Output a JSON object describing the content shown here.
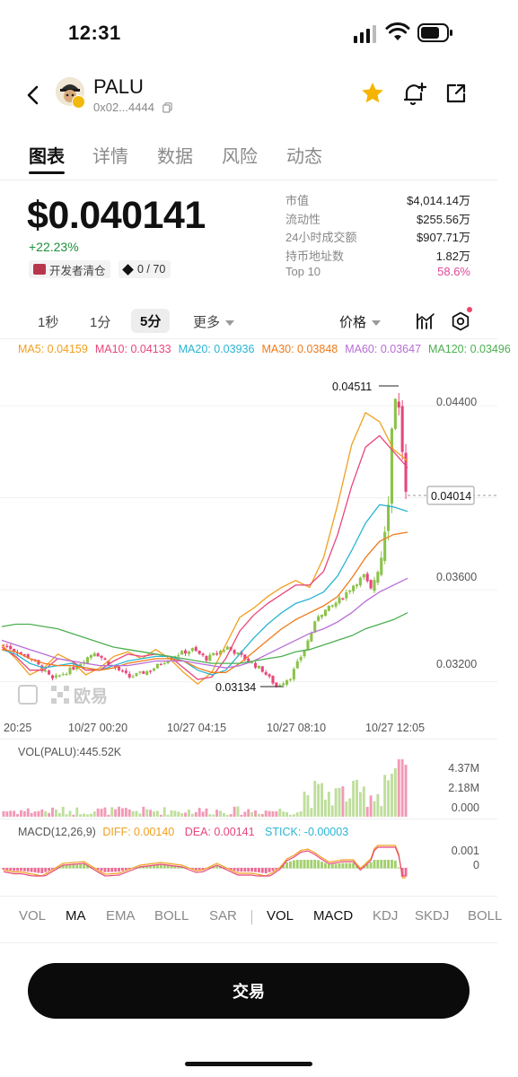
{
  "status_bar": {
    "time": "12:31"
  },
  "header": {
    "token_name": "PALU",
    "token_address": "0x02...4444"
  },
  "tabs": [
    {
      "label": "图表",
      "active": true
    },
    {
      "label": "详情",
      "active": false
    },
    {
      "label": "数据",
      "active": false
    },
    {
      "label": "风险",
      "active": false
    },
    {
      "label": "动态",
      "active": false
    }
  ],
  "price": {
    "value": "$0.040141",
    "change": "+22.23%",
    "dev_chip": "开发者清仓",
    "holder_chip": "0 / 70"
  },
  "stats": [
    {
      "label": "市值",
      "value": "$4,014.14万",
      "color": "#222222"
    },
    {
      "label": "流动性",
      "value": "$255.56万",
      "color": "#222222"
    },
    {
      "label": "24小时成交额",
      "value": "$907.71万",
      "color": "#222222"
    },
    {
      "label": "持币地址数",
      "value": "1.82万",
      "color": "#222222"
    },
    {
      "label": "Top 10",
      "value": "58.6%",
      "color": "#e0489a"
    }
  ],
  "intervals": {
    "one_second": "1秒",
    "one_minute": "1分",
    "five_minute": "5分",
    "more": "更多",
    "price_type": "价格",
    "active": "5分"
  },
  "ma_legend": [
    {
      "text": "MA5: 0.04159",
      "color": "#f0a020"
    },
    {
      "text": "MA10: 0.04133",
      "color": "#e8467a"
    },
    {
      "text": "MA20: 0.03936",
      "color": "#2bb5d3"
    },
    {
      "text": "MA30: 0.03848",
      "color": "#f07a1a"
    },
    {
      "text": "MA60: 0.03647",
      "color": "#b86dd6"
    },
    {
      "text": "MA120: 0.03496",
      "color": "#4caf50"
    }
  ],
  "chart_data": {
    "type": "candlestick",
    "price_axis": [
      "0.04400",
      "0.03600",
      "0.03200"
    ],
    "current_price_label": "0.04014",
    "high_label": "0.04511",
    "low_label": "0.03134",
    "time_axis": [
      "20:25",
      "10/27 00:20",
      "10/27 04:15",
      "10/27 08:10",
      "10/27 12:05"
    ],
    "ylim": [
      0.0305,
      0.0465
    ],
    "trend_points": [
      [
        0,
        0.0336
      ],
      [
        8,
        0.033
      ],
      [
        14,
        0.0321
      ],
      [
        20,
        0.0326
      ],
      [
        26,
        0.0333
      ],
      [
        30,
        0.0328
      ],
      [
        36,
        0.0322
      ],
      [
        42,
        0.0325
      ],
      [
        48,
        0.0331
      ],
      [
        54,
        0.0334
      ],
      [
        58,
        0.033
      ],
      [
        64,
        0.0335
      ],
      [
        68,
        0.0331
      ],
      [
        74,
        0.0325
      ],
      [
        78,
        0.0318
      ],
      [
        82,
        0.0322
      ],
      [
        86,
        0.0334
      ],
      [
        90,
        0.0349
      ],
      [
        94,
        0.0353
      ],
      [
        97,
        0.0357
      ],
      [
        100,
        0.0362
      ],
      [
        103,
        0.0366
      ],
      [
        105,
        0.036
      ],
      [
        108,
        0.0375
      ],
      [
        110,
        0.04
      ],
      [
        111,
        0.043
      ],
      [
        112,
        0.0445
      ],
      [
        113,
        0.0438
      ],
      [
        114,
        0.0421
      ],
      [
        115,
        0.0401
      ]
    ],
    "ma_series": [
      {
        "name": "MA5",
        "values": [
          0.0336,
          0.033,
          0.0323,
          0.0326,
          0.0332,
          0.0329,
          0.0323,
          0.0326,
          0.0331,
          0.0333,
          0.033,
          0.0334,
          0.033,
          0.0324,
          0.0319,
          0.0324,
          0.0336,
          0.0348,
          0.0352,
          0.0357,
          0.0361,
          0.0364,
          0.0361,
          0.0374,
          0.0397,
          0.0423,
          0.0437,
          0.0433,
          0.0421,
          0.0416
        ]
      },
      {
        "name": "MA10",
        "values": [
          0.0335,
          0.0331,
          0.0325,
          0.0325,
          0.033,
          0.0329,
          0.0325,
          0.0325,
          0.0329,
          0.0332,
          0.0331,
          0.0332,
          0.0331,
          0.0326,
          0.0321,
          0.0322,
          0.033,
          0.0342,
          0.0349,
          0.0354,
          0.0358,
          0.0362,
          0.0362,
          0.0368,
          0.0384,
          0.0405,
          0.0422,
          0.0427,
          0.042,
          0.0413
        ]
      },
      {
        "name": "MA20",
        "values": [
          0.0334,
          0.0332,
          0.0328,
          0.0326,
          0.0327,
          0.0328,
          0.0326,
          0.0325,
          0.0327,
          0.0329,
          0.033,
          0.0331,
          0.0331,
          0.0329,
          0.0325,
          0.0323,
          0.0325,
          0.0332,
          0.0339,
          0.0345,
          0.035,
          0.0354,
          0.0356,
          0.0359,
          0.0366,
          0.0377,
          0.0389,
          0.0397,
          0.0396,
          0.0394
        ]
      },
      {
        "name": "MA30",
        "values": [
          0.0334,
          0.0333,
          0.033,
          0.0328,
          0.0327,
          0.0327,
          0.0326,
          0.0325,
          0.0326,
          0.0328,
          0.0329,
          0.033,
          0.033,
          0.0329,
          0.0326,
          0.0324,
          0.0324,
          0.0328,
          0.0333,
          0.0338,
          0.0343,
          0.0347,
          0.035,
          0.0353,
          0.0357,
          0.0365,
          0.0374,
          0.0381,
          0.0384,
          0.0385
        ]
      },
      {
        "name": "MA60",
        "values": [
          0.0338,
          0.0336,
          0.0334,
          0.0332,
          0.033,
          0.0329,
          0.0328,
          0.0327,
          0.0327,
          0.0327,
          0.0328,
          0.0329,
          0.0329,
          0.0329,
          0.0328,
          0.0327,
          0.0326,
          0.0327,
          0.0329,
          0.0332,
          0.0335,
          0.0338,
          0.0341,
          0.0343,
          0.0346,
          0.035,
          0.0355,
          0.0359,
          0.0362,
          0.0365
        ]
      },
      {
        "name": "MA120",
        "values": [
          0.0344,
          0.0345,
          0.0345,
          0.0344,
          0.0343,
          0.0341,
          0.0339,
          0.0337,
          0.0335,
          0.0334,
          0.0333,
          0.0332,
          0.0331,
          0.033,
          0.0329,
          0.0328,
          0.0328,
          0.0328,
          0.0329,
          0.033,
          0.0331,
          0.0333,
          0.0334,
          0.0336,
          0.0338,
          0.034,
          0.0343,
          0.0345,
          0.0347,
          0.035
        ]
      }
    ]
  },
  "volume": {
    "label": "VOL(PALU):445.52K",
    "axis": [
      "4.37M",
      "2.18M",
      "0.000"
    ]
  },
  "macd": {
    "title": "MACD(12,26,9)",
    "diff": "DIFF: 0.00140",
    "dea": "DEA: 0.00141",
    "stick": "STICK: -0.00003",
    "axis": [
      "0.001",
      "0"
    ]
  },
  "indicator_tabs": [
    "VOL",
    "MA",
    "EMA",
    "BOLL",
    "SAR",
    "VOL",
    "MACD",
    "KDJ",
    "SKDJ",
    "BOLL"
  ],
  "trade_button": "交易",
  "colors": {
    "up": "#8bc34a",
    "down": "#e8467a",
    "positive": "#1f8f3a",
    "accent_pink": "#e0489a"
  }
}
